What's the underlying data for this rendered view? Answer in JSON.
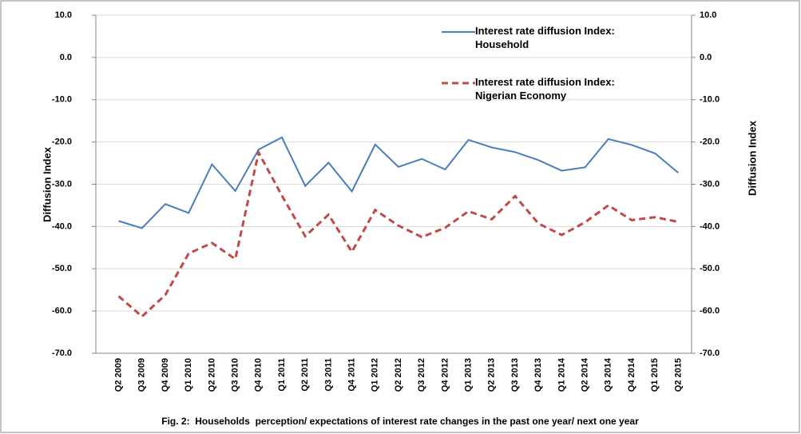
{
  "chart_data": {
    "type": "line",
    "title": "Fig. 2:  Households  perception/ expectations of interest rate changes in the past one year/ next one year",
    "y_label": "Diffusion Index",
    "y2_label": "Diffusion Index",
    "categories": [
      "Q2 2009",
      "Q3 2009",
      "Q4 2009",
      "Q1 2010",
      "Q2 2010",
      "Q3 2010",
      "Q4 2010",
      "Q1 2011",
      "Q2 2011",
      "Q3 2011",
      "Q4 2011",
      "Q1 2012",
      "Q2 2012",
      "Q3 2012",
      "Q4 2012",
      "Q1 2013",
      "Q2 2013",
      "Q3 2013",
      "Q4 2013",
      "Q1 2014",
      "Q2 2014",
      "Q3 2014",
      "Q4 2014",
      "Q1 2015",
      "Q2 2015"
    ],
    "series": [
      {
        "name": "Interest rate diffusion Index: Household",
        "color": "#4a7ebb",
        "line_style": "solid",
        "values": [
          -38.7,
          -40.4,
          -34.7,
          -36.8,
          -25.3,
          -31.6,
          -21.8,
          -18.9,
          -30.4,
          -24.9,
          -31.7,
          -20.6,
          -25.9,
          -24.0,
          -26.5,
          -19.5,
          -21.3,
          -22.4,
          -24.3,
          -26.8,
          -26.0,
          -19.3,
          -20.7,
          -22.7,
          -27.3
        ]
      },
      {
        "name": "Interest rate diffusion Index: Nigerian Economy",
        "color": "#be4b48",
        "line_style": "dashed",
        "values": [
          -56.5,
          -61.3,
          -56.2,
          -46.4,
          -43.9,
          -47.7,
          -22.5,
          -32.7,
          -42.3,
          -37.2,
          -46.0,
          -36.1,
          -39.8,
          -42.5,
          -40.3,
          -36.4,
          -38.3,
          -32.8,
          -39.3,
          -42.0,
          -39.0,
          -35.0,
          -38.5,
          -37.8,
          -38.9
        ]
      }
    ],
    "ylim": [
      -70,
      10
    ],
    "yticks": [
      {
        "value": 10,
        "label": "10.0"
      },
      {
        "value": 0,
        "label": "0.0"
      },
      {
        "value": -10,
        "label": "-10.0"
      },
      {
        "value": -20,
        "label": "-20.0"
      },
      {
        "value": -30,
        "label": "-30.0"
      },
      {
        "value": -40,
        "label": "-40.0"
      },
      {
        "value": -50,
        "label": "-50.0"
      },
      {
        "value": -60,
        "label": "-60.0"
      },
      {
        "value": -70,
        "label": "-70.0"
      }
    ],
    "y2lim": [
      -70,
      10
    ],
    "y2ticks": [
      {
        "value": 10,
        "label": "10.0"
      },
      {
        "value": 0,
        "label": "0.0"
      },
      {
        "value": -10,
        "label": "-10.0"
      },
      {
        "value": -20,
        "label": "-20.0"
      },
      {
        "value": -30,
        "label": "-30.0"
      },
      {
        "value": -40,
        "label": "-40.0"
      },
      {
        "value": -50,
        "label": "-50.0"
      },
      {
        "value": -60,
        "label": "-60.0"
      },
      {
        "value": -70,
        "label": "-70.0"
      }
    ],
    "grid": true
  }
}
